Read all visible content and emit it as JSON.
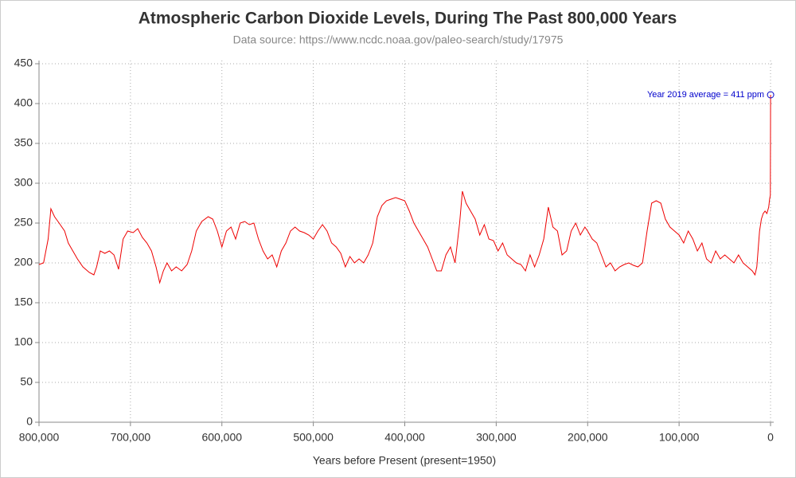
{
  "chart_data": {
    "type": "line",
    "title": "Atmospheric Carbon Dioxide Levels, During The Past 800,000 Years",
    "subtitle": "Data source: https://www.ncdc.noaa.gov/paleo-search/study/17975",
    "x_label": "Years before Present (present=1950)",
    "annotation": "Year 2019 average = 411 ppm",
    "annotation_color": "#0000cc",
    "x": [
      800000,
      795000,
      790000,
      787000,
      783000,
      778000,
      772000,
      768000,
      763000,
      758000,
      752000,
      745000,
      740000,
      737000,
      733000,
      728000,
      723000,
      718000,
      713000,
      708000,
      703000,
      697000,
      692000,
      687000,
      682000,
      677000,
      672000,
      668000,
      664000,
      660000,
      655000,
      650000,
      644000,
      638000,
      633000,
      628000,
      622000,
      615000,
      610000,
      605000,
      600000,
      595000,
      590000,
      585000,
      580000,
      575000,
      570000,
      565000,
      560000,
      555000,
      550000,
      545000,
      540000,
      535000,
      530000,
      525000,
      520000,
      515000,
      510000,
      505000,
      500000,
      495000,
      490000,
      485000,
      480000,
      475000,
      470000,
      465000,
      460000,
      455000,
      450000,
      445000,
      440000,
      435000,
      430000,
      425000,
      420000,
      415000,
      410000,
      405000,
      400000,
      395000,
      390000,
      385000,
      380000,
      375000,
      370000,
      365000,
      360000,
      355000,
      350000,
      345000,
      340000,
      337000,
      333000,
      328000,
      323000,
      318000,
      313000,
      308000,
      303000,
      298000,
      293000,
      288000,
      283000,
      278000,
      273000,
      268000,
      263000,
      258000,
      253000,
      248000,
      243000,
      238000,
      233000,
      228000,
      223000,
      218000,
      213000,
      208000,
      203000,
      200000,
      195000,
      190000,
      185000,
      180000,
      175000,
      170000,
      165000,
      160000,
      155000,
      150000,
      145000,
      140000,
      135000,
      130000,
      125000,
      120000,
      115000,
      110000,
      105000,
      100000,
      95000,
      90000,
      85000,
      80000,
      75000,
      70000,
      65000,
      60000,
      55000,
      50000,
      45000,
      40000,
      35000,
      30000,
      25000,
      20000,
      17000,
      15000,
      12000,
      10000,
      8000,
      6000,
      4000,
      2000,
      1000,
      200,
      -69
    ],
    "series": [
      {
        "name": "CO2",
        "color": "#ee0000",
        "values": [
          198,
          200,
          230,
          268,
          258,
          250,
          240,
          225,
          215,
          205,
          195,
          188,
          185,
          195,
          215,
          212,
          215,
          210,
          192,
          230,
          240,
          238,
          243,
          232,
          225,
          215,
          195,
          175,
          190,
          200,
          190,
          195,
          190,
          198,
          215,
          240,
          252,
          258,
          255,
          240,
          220,
          240,
          245,
          230,
          250,
          252,
          248,
          250,
          230,
          215,
          205,
          210,
          195,
          215,
          225,
          240,
          245,
          240,
          238,
          235,
          230,
          240,
          248,
          240,
          225,
          220,
          212,
          195,
          208,
          200,
          205,
          200,
          210,
          225,
          258,
          272,
          278,
          280,
          282,
          280,
          278,
          265,
          250,
          240,
          230,
          220,
          205,
          190,
          190,
          210,
          220,
          200,
          250,
          290,
          275,
          265,
          255,
          235,
          248,
          230,
          228,
          215,
          225,
          210,
          205,
          200,
          198,
          190,
          210,
          195,
          210,
          230,
          270,
          245,
          240,
          210,
          215,
          240,
          250,
          235,
          245,
          240,
          230,
          225,
          210,
          195,
          200,
          190,
          195,
          198,
          200,
          197,
          195,
          200,
          240,
          275,
          278,
          275,
          255,
          245,
          240,
          235,
          225,
          240,
          230,
          215,
          225,
          205,
          200,
          215,
          205,
          210,
          205,
          200,
          210,
          200,
          195,
          190,
          185,
          195,
          240,
          255,
          262,
          265,
          262,
          270,
          280,
          285,
          411
        ]
      }
    ],
    "xlim": [
      800000,
      0
    ],
    "ylim": [
      0,
      450
    ],
    "xticks": [
      {
        "value": 800000,
        "label": "800,000"
      },
      {
        "value": 700000,
        "label": "700,000"
      },
      {
        "value": 600000,
        "label": "600,000"
      },
      {
        "value": 500000,
        "label": "500,000"
      },
      {
        "value": 400000,
        "label": "400,000"
      },
      {
        "value": 300000,
        "label": "300,000"
      },
      {
        "value": 200000,
        "label": "200,000"
      },
      {
        "value": 100000,
        "label": "100,000"
      },
      0
    ],
    "yticks": [
      0,
      50,
      100,
      150,
      200,
      250,
      300,
      350,
      400,
      450
    ],
    "grid": true
  }
}
